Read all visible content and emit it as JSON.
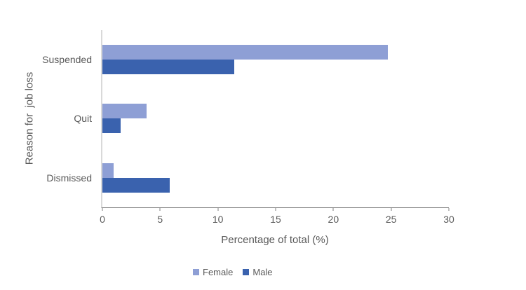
{
  "chart_data": {
    "type": "bar",
    "orientation": "horizontal",
    "title": "",
    "categories": [
      "Suspended",
      "Quit",
      "Dismissed"
    ],
    "series": [
      {
        "name": "Female",
        "color": "#8E9FD5",
        "values": [
          24.7,
          3.8,
          1.0
        ]
      },
      {
        "name": "Male",
        "color": "#3A62AE",
        "values": [
          11.4,
          1.6,
          5.8
        ]
      }
    ],
    "xlabel": "Percentage of total (%)",
    "ylabel": "Reason for  job loss",
    "xlim": [
      0,
      30
    ],
    "xticks": [
      0,
      5,
      10,
      15,
      20,
      25,
      30
    ],
    "grid": false,
    "legend": {
      "position": "bottom",
      "entries": [
        "Female",
        "Male"
      ]
    },
    "styles": {
      "text_color": "#595959",
      "value_axis_line_color": "#808080",
      "category_axis_line_color": "#D9D9D9",
      "background": "#FFFFFF"
    }
  }
}
